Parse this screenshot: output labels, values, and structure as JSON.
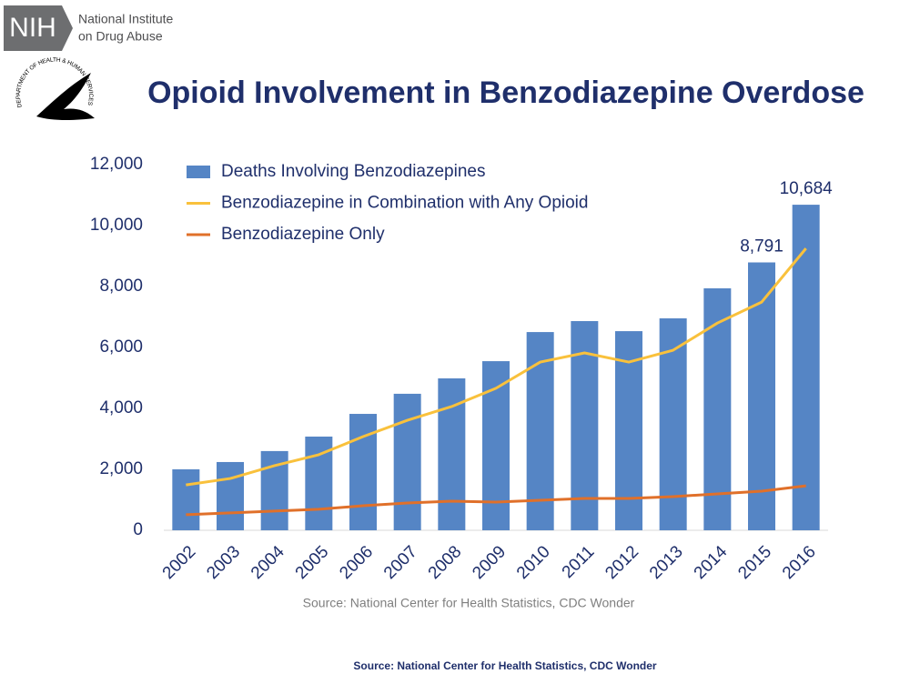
{
  "header": {
    "logo": "NIH",
    "org_line1": "National Institute",
    "org_line2": "on Drug Abuse",
    "seal": "DEPARTMENT OF HEALTH & HUMAN SERVICES · USA"
  },
  "chart_data": {
    "type": "bar",
    "title": "Opioid Involvement in Benzodiazepine Overdose",
    "categories": [
      "2002",
      "2003",
      "2004",
      "2005",
      "2006",
      "2007",
      "2008",
      "2009",
      "2010",
      "2011",
      "2012",
      "2013",
      "2014",
      "2015",
      "2016"
    ],
    "series": [
      {
        "name": "Deaths Involving Benzodiazepines",
        "type": "bar",
        "color": "#5585c5",
        "values": [
          2000,
          2240,
          2600,
          3075,
          3820,
          4480,
          4985,
          5550,
          6505,
          6865,
          6535,
          6955,
          7940,
          8791,
          10684
        ],
        "value_labels": [
          null,
          null,
          null,
          null,
          null,
          null,
          null,
          null,
          null,
          null,
          null,
          null,
          null,
          "8,791",
          "10,684"
        ]
      },
      {
        "name": "Benzodiazepine in Combination with Any Opioid",
        "type": "line",
        "color": "#f9c13c",
        "values": [
          1490,
          1700,
          2120,
          2480,
          3075,
          3610,
          4060,
          4660,
          5520,
          5820,
          5520,
          5910,
          6800,
          7490,
          9250
        ]
      },
      {
        "name": "Benzodiazepine Only",
        "type": "line",
        "color": "#e0702a",
        "values": [
          510,
          570,
          630,
          690,
          805,
          895,
          955,
          925,
          985,
          1045,
          1045,
          1105,
          1195,
          1285,
          1460
        ]
      }
    ],
    "ylim": [
      0,
      12000
    ],
    "yticks": [
      0,
      {
        "value": 2000,
        "label": "2,000"
      },
      {
        "value": 4000,
        "label": "4,000"
      },
      {
        "value": 6000,
        "label": "6,000"
      },
      {
        "value": 8000,
        "label": "8,000"
      },
      {
        "value": 10000,
        "label": "10,000"
      },
      {
        "value": 12000,
        "label": "12,000"
      }
    ],
    "grid": false,
    "legend": "top-left",
    "source": "Source: National Center for Health Statistics, CDC Wonder"
  },
  "footer": "Source: National Center for Health Statistics, CDC Wonder"
}
